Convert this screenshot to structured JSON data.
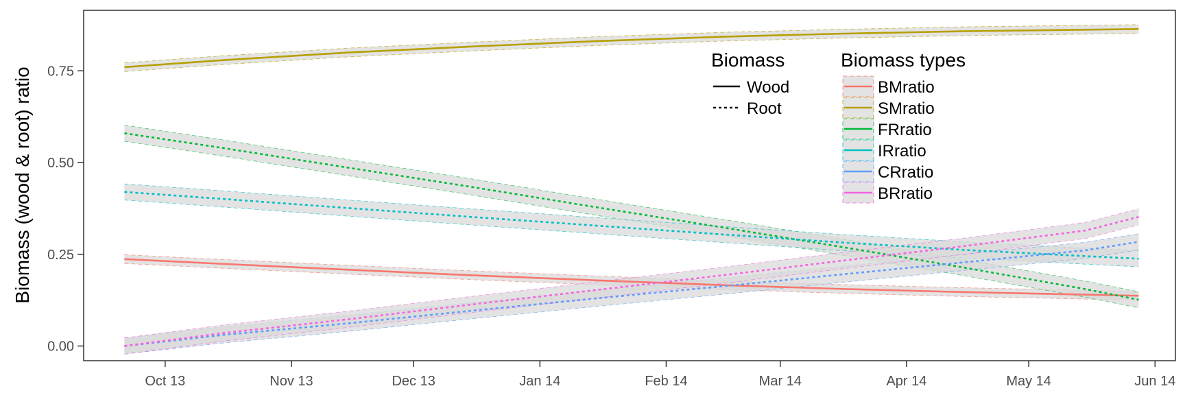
{
  "chart_data": {
    "type": "line",
    "title": "",
    "xlabel": "",
    "ylabel": "Biomass (wood & root) ratio",
    "x_ticks": [
      "Oct 13",
      "Nov 13",
      "Dec 13",
      "Jan 14",
      "Feb 14",
      "Mar 14",
      "Apr 14",
      "May 14",
      "Jun 14"
    ],
    "x_tick_dates": [
      "2013-10-01",
      "2013-11-01",
      "2013-12-01",
      "2014-01-01",
      "2014-02-01",
      "2014-03-01",
      "2014-04-01",
      "2014-05-01",
      "2014-06-01"
    ],
    "xlim": [
      "2013-09-11",
      "2014-06-06"
    ],
    "y_ticks": [
      "0.00",
      "0.25",
      "0.50",
      "0.75"
    ],
    "ylim": [
      -0.04,
      0.915
    ],
    "grid": false,
    "confidence_band_fill": "#d9d9d9",
    "legend_position": "top-center-right",
    "legend_biomass": {
      "title": "Biomass",
      "entries": [
        {
          "label": "Wood",
          "dash": "solid"
        },
        {
          "label": "Root",
          "dash": "dotted"
        }
      ]
    },
    "legend_types": {
      "title": "Biomass types",
      "entries": [
        "BMratio",
        "SMratio",
        "FRratio",
        "IRratio",
        "CRratio",
        "BRratio"
      ]
    },
    "x": [
      "2013-09-21",
      "2013-10-15",
      "2013-11-15",
      "2013-12-15",
      "2014-01-15",
      "2014-02-15",
      "2014-03-15",
      "2014-04-15",
      "2014-05-15",
      "2014-05-28"
    ],
    "series": [
      {
        "name": "BMratio",
        "biomass": "Wood",
        "color": "#F8766D",
        "values": [
          0.237,
          0.224,
          0.208,
          0.193,
          0.179,
          0.166,
          0.156,
          0.147,
          0.14,
          0.137
        ],
        "band": 0.012
      },
      {
        "name": "SMratio",
        "biomass": "Wood",
        "color": "#B79F00",
        "values": [
          0.76,
          0.779,
          0.8,
          0.816,
          0.831,
          0.843,
          0.851,
          0.858,
          0.862,
          0.864
        ],
        "band": 0.012
      },
      {
        "name": "FRratio",
        "biomass": "Root",
        "color": "#00BA38",
        "values": [
          0.58,
          0.54,
          0.486,
          0.434,
          0.378,
          0.323,
          0.272,
          0.214,
          0.155,
          0.126
        ],
        "band": 0.022
      },
      {
        "name": "IRratio",
        "biomass": "Root",
        "color": "#00BFC4",
        "values": [
          0.42,
          0.401,
          0.376,
          0.352,
          0.328,
          0.304,
          0.283,
          0.262,
          0.245,
          0.238
        ],
        "band": 0.022
      },
      {
        "name": "CRratio",
        "biomass": "Root",
        "color": "#619CFF",
        "values": [
          0.0,
          0.03,
          0.062,
          0.096,
          0.13,
          0.163,
          0.194,
          0.228,
          0.261,
          0.284
        ],
        "band": 0.022
      },
      {
        "name": "BRratio",
        "biomass": "Root",
        "color": "#F564E3",
        "values": [
          0.0,
          0.035,
          0.073,
          0.113,
          0.153,
          0.193,
          0.231,
          0.272,
          0.315,
          0.352
        ],
        "band": 0.022
      }
    ]
  }
}
